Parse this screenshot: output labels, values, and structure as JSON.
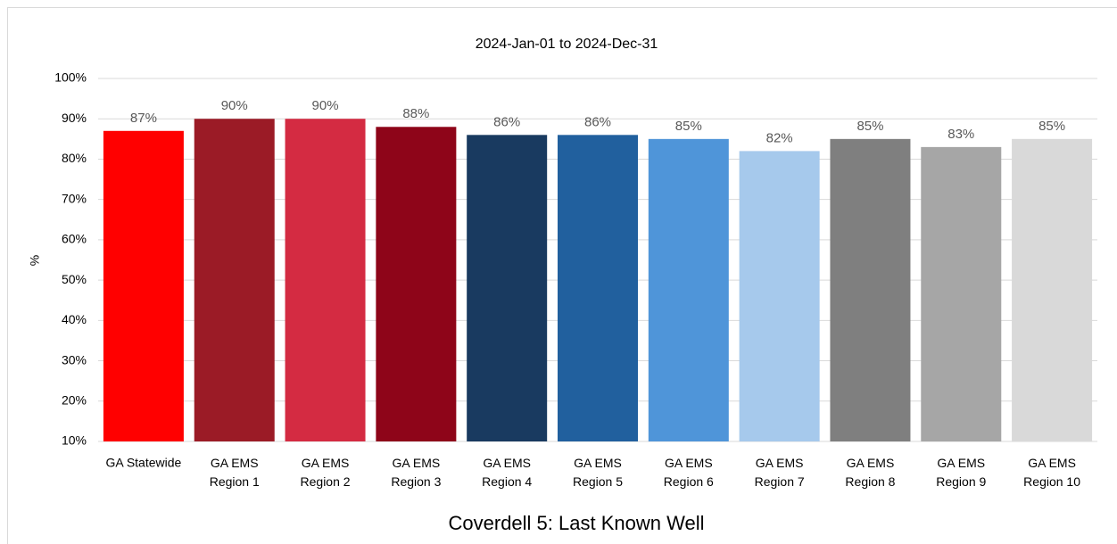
{
  "chart_data": {
    "type": "bar",
    "title": "Coverdell 5: Last Known Well",
    "subtitle": "2024-Jan-01 to 2024-Dec-31",
    "y_label": "%",
    "categories": [
      "GA Statewide",
      "GA EMS Region 1",
      "GA EMS Region 2",
      "GA EMS Region 3",
      "GA EMS Region 4",
      "GA EMS Region 5",
      "GA EMS Region 6",
      "GA EMS Region 7",
      "GA EMS Region 8",
      "GA EMS Region 9",
      "GA EMS Region 10"
    ],
    "values": [
      87,
      90,
      90,
      88,
      86,
      86,
      85,
      82,
      85,
      83,
      85
    ],
    "value_labels": [
      "87%",
      "90%",
      "90%",
      "88%",
      "86%",
      "86%",
      "85%",
      "82%",
      "85%",
      "83%",
      "85%"
    ],
    "colors": [
      "#ff0000",
      "#9b1b26",
      "#d42b42",
      "#8e0519",
      "#193a60",
      "#21609e",
      "#4f95d9",
      "#a6c9ec",
      "#7f7f7f",
      "#a6a6a6",
      "#d9d9d9"
    ],
    "ylim": [
      10,
      100
    ],
    "yticks": [
      {
        "value": 10,
        "label": "10%"
      },
      {
        "value": 20,
        "label": "20%"
      },
      {
        "value": 30,
        "label": "30%"
      },
      {
        "value": 40,
        "label": "40%"
      },
      {
        "value": 50,
        "label": "50%"
      },
      {
        "value": 60,
        "label": "60%"
      },
      {
        "value": 70,
        "label": "70%"
      },
      {
        "value": 80,
        "label": "80%"
      },
      {
        "value": 90,
        "label": "90%"
      },
      {
        "value": 100,
        "label": "100%"
      }
    ],
    "grid": true
  }
}
